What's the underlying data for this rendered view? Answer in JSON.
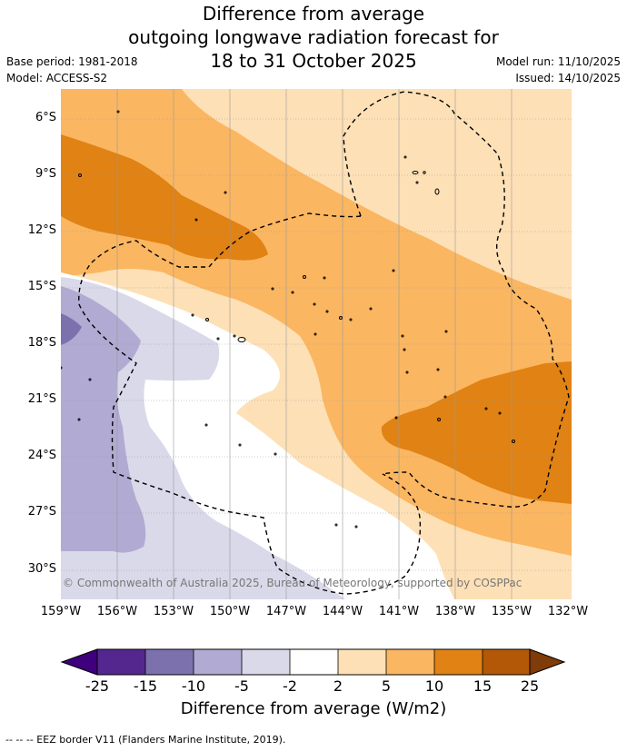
{
  "title": {
    "line1": "Difference from average",
    "line2": "outgoing longwave radiation forecast for",
    "line3": "18 to 31 October 2025"
  },
  "info": {
    "base_period": "Base period: 1981-2018",
    "model": "Model: ACCESS-S2",
    "model_run": "Model run: 11/10/2025",
    "issued": "Issued: 14/10/2025"
  },
  "map": {
    "copyright": "© Commonwealth of Australia 2025, Bureau of Meteorology, supported by COSPPac",
    "lat_labels": [
      "6°S",
      "9°S",
      "12°S",
      "15°S",
      "18°S",
      "21°S",
      "24°S",
      "27°S",
      "30°S"
    ],
    "lon_labels": [
      "159°W",
      "156°W",
      "153°W",
      "150°W",
      "147°W",
      "144°W",
      "141°W",
      "138°W",
      "135°W",
      "132°W"
    ]
  },
  "colorbar": {
    "title": "Difference from average (W/m2)",
    "ticks": [
      "-25",
      "-15",
      "-10",
      "-5",
      "-2",
      "2",
      "5",
      "10",
      "15",
      "25"
    ],
    "colors": {
      "below_min": "#3f007d",
      "c1": "#54278f",
      "c2": "#7d71ad",
      "c3": "#b1aad2",
      "c4": "#d9d9ea",
      "c5": "#ffffff",
      "c6": "#fee0b6",
      "c7": "#fbb661",
      "c8": "#e08214",
      "c9": "#b35806",
      "above_max": "#7f3b08"
    }
  },
  "footer": "--  --  -- EEZ border V11 (Flanders Marine Institute, 2019)."
}
